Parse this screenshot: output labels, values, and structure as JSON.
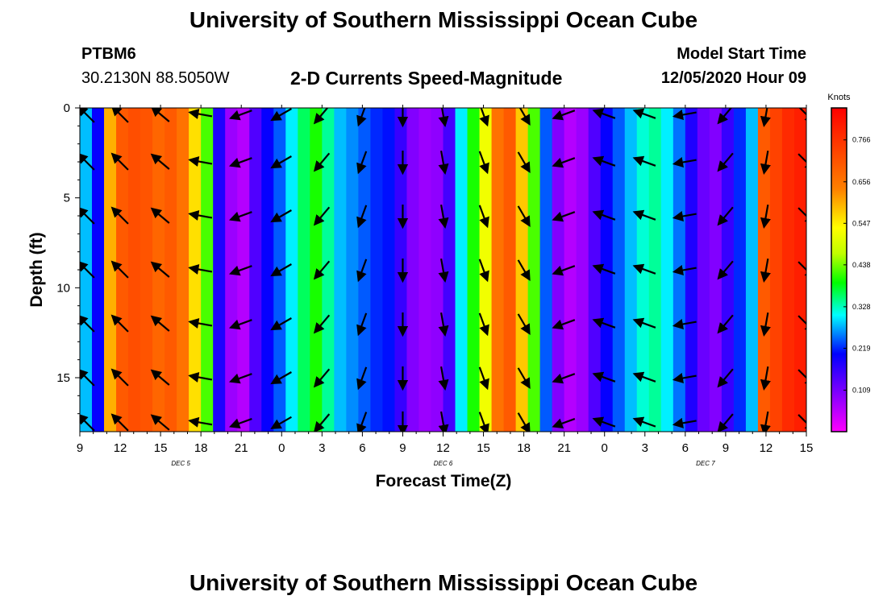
{
  "page": {
    "title": "University of Southern Mississippi Ocean Cube",
    "footer": "University of Southern Mississippi Ocean Cube",
    "station_id": "PTBM6",
    "station_coords": "30.2130N 88.5050W",
    "model_start_label": "Model Start Time",
    "model_start_value": "12/05/2020 Hour 09"
  },
  "chart_data": {
    "type": "heatmap",
    "title": "2-D Currents Speed-Magnitude",
    "xlabel": "Forecast Time(Z)",
    "ylabel": "Depth (ft)",
    "x_tick_labels": [
      "9",
      "12",
      "15",
      "18",
      "21",
      "0",
      "3",
      "6",
      "9",
      "12",
      "15",
      "18",
      "21",
      "0",
      "3",
      "6",
      "9",
      "12",
      "15"
    ],
    "x_hours": [
      0,
      3,
      6,
      9,
      12,
      15,
      18,
      21,
      24,
      27,
      30,
      33,
      36,
      39,
      42,
      45,
      48,
      51,
      54
    ],
    "day_labels": [
      {
        "label": "DEC 5",
        "hour": 7.5
      },
      {
        "label": "DEC 6",
        "hour": 27
      },
      {
        "label": "DEC 7",
        "hour": 46.5
      }
    ],
    "y_ticks": [
      0,
      5,
      10,
      15
    ],
    "ylim": [
      0,
      18
    ],
    "y_inverted": true,
    "colorbar": {
      "unit": "Knots",
      "ticks": [
        "0.109",
        "0.219",
        "0.328",
        "0.438",
        "0.547",
        "0.656",
        "0.766"
      ],
      "range": [
        0,
        0.85
      ]
    },
    "column_speeds": [
      0.28,
      0.2,
      0.6,
      0.7,
      0.72,
      0.71,
      0.68,
      0.7,
      0.66,
      0.56,
      0.42,
      0.18,
      0.08,
      0.06,
      0.14,
      0.2,
      0.24,
      0.3,
      0.36,
      0.4,
      0.34,
      0.28,
      0.26,
      0.24,
      0.22,
      0.21,
      0.16,
      0.1,
      0.08,
      0.09,
      0.15,
      0.3,
      0.4,
      0.52,
      0.66,
      0.7,
      0.58,
      0.42,
      0.24,
      0.1,
      0.06,
      0.08,
      0.14,
      0.2,
      0.24,
      0.28,
      0.32,
      0.34,
      0.3,
      0.25,
      0.18,
      0.12,
      0.1,
      0.16,
      0.22,
      0.28,
      0.7,
      0.74,
      0.78,
      0.8
    ],
    "arrow_columns_hours": [
      0,
      3,
      6,
      9,
      12,
      15,
      18,
      21,
      24,
      27,
      30,
      33,
      36,
      39,
      42,
      45,
      48,
      51,
      54
    ],
    "arrow_depths": [
      0,
      3,
      6,
      9,
      12,
      15,
      17.5
    ],
    "arrow_directions_deg": [
      225,
      225,
      220,
      190,
      160,
      150,
      130,
      110,
      90,
      80,
      70,
      60,
      160,
      200,
      200,
      170,
      130,
      100,
      45
    ]
  }
}
